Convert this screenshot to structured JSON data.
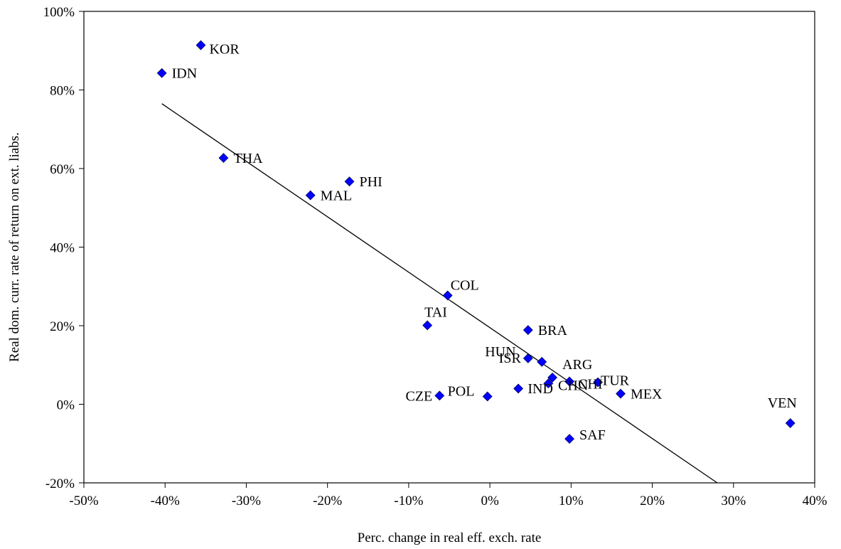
{
  "chart_data": {
    "type": "scatter",
    "xlabel": "Perc. change in real eff. exch. rate",
    "ylabel": "Real dom. curr. rate of return on ext. liabs.",
    "xlim": [
      -0.5,
      0.4
    ],
    "ylim": [
      -0.2,
      1.0
    ],
    "grid": false,
    "legend": "none",
    "x_ticks": [
      -0.5,
      -0.4,
      -0.3,
      -0.2,
      -0.1,
      0.0,
      0.1,
      0.2,
      0.3,
      0.4
    ],
    "x_tick_labels": [
      "-50%",
      "-40%",
      "-30%",
      "-20%",
      "-10%",
      "0%",
      "10%",
      "20%",
      "30%",
      "40%"
    ],
    "y_ticks": [
      -0.2,
      0.0,
      0.2,
      0.4,
      0.6,
      0.8,
      1.0
    ],
    "y_tick_labels": [
      "-20%",
      "0%",
      "20%",
      "40%",
      "60%",
      "80%",
      "100%"
    ],
    "marker_color": "#0000ff",
    "trendline": {
      "color": "#000000",
      "points": [
        [
          -0.404,
          0.765
        ],
        [
          0.28,
          -0.2
        ]
      ]
    },
    "points": [
      {
        "label": "KOR",
        "x": -0.356,
        "y": 0.914,
        "lx": 12,
        "ly": 12,
        "anchor": "start"
      },
      {
        "label": "IDN",
        "x": -0.404,
        "y": 0.843,
        "lx": 14,
        "ly": 7,
        "anchor": "start"
      },
      {
        "label": "THA",
        "x": -0.328,
        "y": 0.627,
        "lx": 14,
        "ly": 7,
        "anchor": "start"
      },
      {
        "label": "PHI",
        "x": -0.173,
        "y": 0.567,
        "lx": 14,
        "ly": 7,
        "anchor": "start"
      },
      {
        "label": "MAL",
        "x": -0.221,
        "y": 0.532,
        "lx": 14,
        "ly": 7,
        "anchor": "start"
      },
      {
        "label": "COL",
        "x": -0.052,
        "y": 0.277,
        "lx": 4,
        "ly": -8,
        "anchor": "start"
      },
      {
        "label": "TAI",
        "x": -0.077,
        "y": 0.201,
        "lx": -4,
        "ly": -12,
        "anchor": "start"
      },
      {
        "label": "BRA",
        "x": 0.047,
        "y": 0.189,
        "lx": 14,
        "ly": 7,
        "anchor": "start"
      },
      {
        "label": "HUN",
        "x": 0.064,
        "y": 0.108,
        "lx": -80,
        "ly": -8,
        "anchor": "start"
      },
      {
        "label": "ISR",
        "x": 0.047,
        "y": 0.117,
        "lx": -10,
        "ly": 6,
        "anchor": "end"
      },
      {
        "label": "ARG",
        "x": 0.077,
        "y": 0.068,
        "lx": 14,
        "ly": -12,
        "anchor": "start"
      },
      {
        "label": "IND",
        "x": 0.072,
        "y": 0.053,
        "lx": -29,
        "ly": 14,
        "anchor": "start"
      },
      {
        "label": "CHN",
        "x": 0.098,
        "y": 0.058,
        "lx": -16,
        "ly": 12,
        "anchor": "start"
      },
      {
        "label": "CHI",
        "x": 0.035,
        "y": 0.04,
        "lx": 84,
        "ly": 0,
        "anchor": "start"
      },
      {
        "label": "TUR",
        "x": 0.133,
        "y": 0.056,
        "lx": 4,
        "ly": 4,
        "anchor": "start"
      },
      {
        "label": "MEX",
        "x": 0.161,
        "y": 0.027,
        "lx": 14,
        "ly": 7,
        "anchor": "start"
      },
      {
        "label": "POL",
        "x": -0.003,
        "y": 0.02,
        "lx": -56,
        "ly": -1,
        "anchor": "start"
      },
      {
        "label": "CZE",
        "x": -0.062,
        "y": 0.022,
        "lx": -10,
        "ly": 7,
        "anchor": "end"
      },
      {
        "label": "SAF",
        "x": 0.098,
        "y": -0.088,
        "lx": 14,
        "ly": 1,
        "anchor": "start"
      },
      {
        "label": "VEN",
        "x": 0.37,
        "y": -0.048,
        "lx": -32,
        "ly": -22,
        "anchor": "start"
      }
    ]
  }
}
